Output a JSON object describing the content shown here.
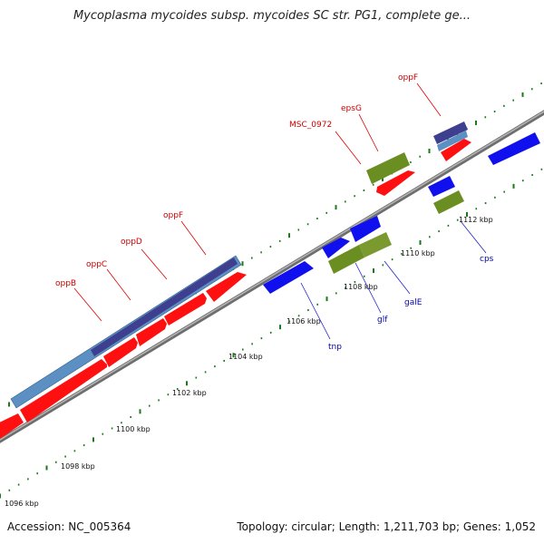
{
  "title": "Mycoplasma mycoides subsp. mycoides SC str. PG1, complete ge...",
  "footer": {
    "accession": "Accession: NC_005364",
    "summary": "Topology: circular; Length: 1,211,703 bp; Genes: 1,052"
  },
  "colors": {
    "forward_gene": "#ff0000",
    "reverse_gene": "#1010ee",
    "rna": "#6b8e23",
    "operon_dark": "#3f3f8f",
    "operon_light": "#5c8fc2",
    "tick": "#1a7a1a",
    "backbone": "#8a8a8a",
    "forward_label": "#cc0000",
    "reverse_label": "#0000aa"
  },
  "ticks": [
    "1096 kbp",
    "1098 kbp",
    "1100 kbp",
    "1102 kbp",
    "1104 kbp",
    "1106 kbp",
    "1108 kbp",
    "1110 kbp",
    "1112 kbp"
  ],
  "forward_labels": [
    "oppB",
    "oppC",
    "oppD",
    "oppF",
    "MSC_0972",
    "epsG",
    "oppF"
  ],
  "reverse_labels": [
    "tnp",
    "glf",
    "galE",
    "cps"
  ]
}
